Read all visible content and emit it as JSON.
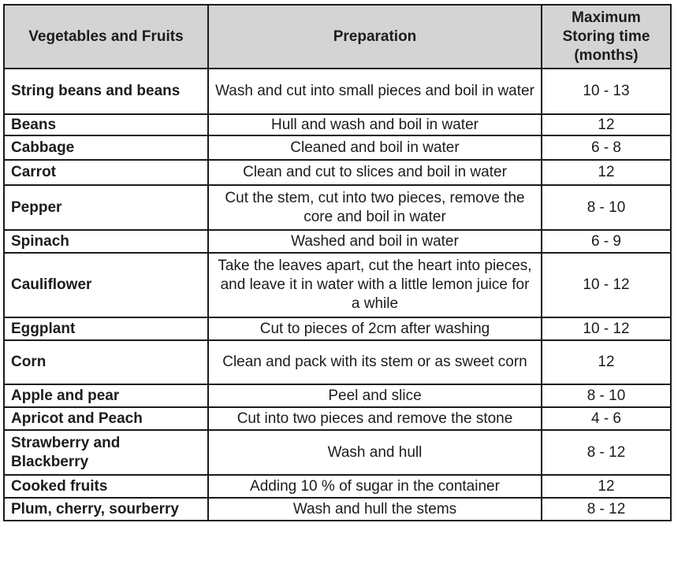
{
  "headers": [
    "Vegetables and Fruits",
    "Preparation",
    "Maximum Storing time (months)"
  ],
  "header_bg": "#d4d4d4",
  "rows": [
    {
      "name": "String beans and beans",
      "prep": "Wash and cut into small pieces and boil in water",
      "time": "10 - 13"
    },
    {
      "name": "Beans",
      "prep": "Hull and wash and boil in water",
      "time": "12"
    },
    {
      "name": "Cabbage",
      "prep": "Cleaned and boil in water",
      "time": "6 - 8"
    },
    {
      "name": "Carrot",
      "prep": "Clean and cut to slices and boil in water",
      "time": "12"
    },
    {
      "name": "Pepper",
      "prep": "Cut the stem, cut into two pieces, remove the core and boil in water",
      "time": "8 - 10"
    },
    {
      "name": "Spinach",
      "prep": "Washed and boil in water",
      "time": "6 - 9"
    },
    {
      "name": "Cauliflower",
      "prep": "Take the leaves apart, cut the heart into pieces, and leave it in water with a little lemon juice for a while",
      "time": "10 - 12"
    },
    {
      "name": "Eggplant",
      "prep": "Cut to pieces of 2cm after washing",
      "time": "10 - 12"
    },
    {
      "name": "Corn",
      "prep": "Clean and pack with its stem or as sweet corn",
      "time": "12"
    },
    {
      "name": "Apple and pear",
      "prep": "Peel and slice",
      "time": "8 - 10"
    },
    {
      "name": "Apricot and Peach",
      "prep": "Cut into two pieces and remove the stone",
      "time": "4 - 6"
    },
    {
      "name": "Strawberry and Blackberry",
      "prep": "Wash and hull",
      "time": "8 - 12"
    },
    {
      "name": "Cooked fruits",
      "prep": "Adding 10 % of sugar in the container",
      "time": "12"
    },
    {
      "name": "Plum, cherry, sourberry",
      "prep": "Wash and hull the stems",
      "time": "8 - 12"
    }
  ]
}
